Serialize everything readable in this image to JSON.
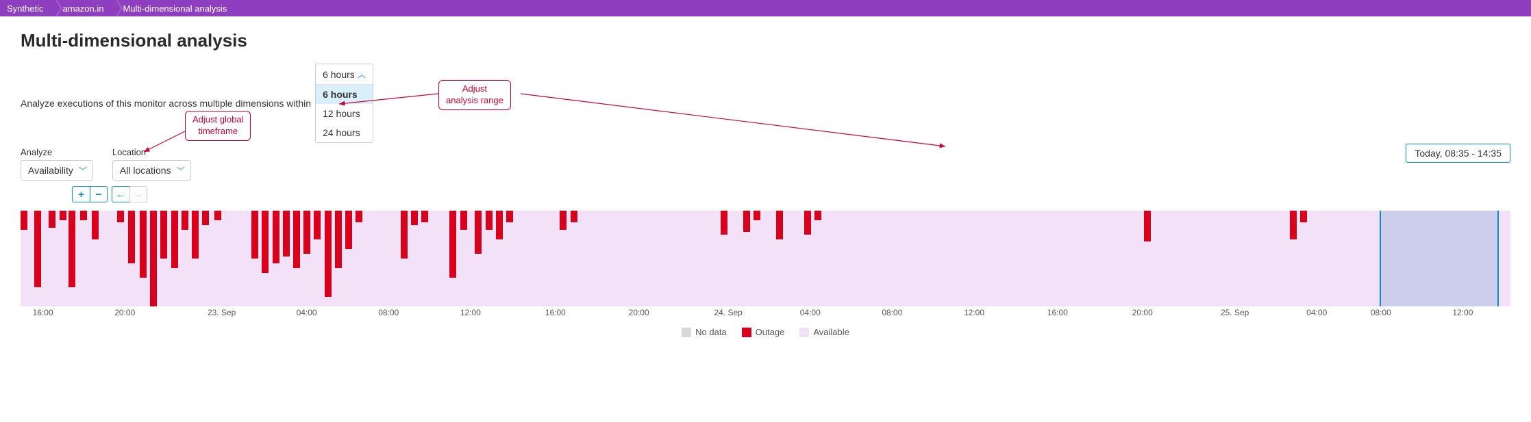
{
  "breadcrumb": [
    "Synthetic",
    "amazon.in",
    "Multi-dimensional analysis"
  ],
  "title": "Multi-dimensional analysis",
  "intro": "Analyze executions of this monitor across multiple dimensions within",
  "analyze": {
    "label": "Analyze",
    "value": "Availability"
  },
  "location": {
    "label": "Location",
    "value": "All locations"
  },
  "range_dropdown": {
    "selected": "6 hours",
    "options": [
      "6 hours",
      "12 hours",
      "24 hours"
    ]
  },
  "time_badge": "Today, 08:35 - 14:35",
  "annotations": {
    "global_timeframe": "Adjust global\ntimeframe",
    "analysis_range": "Adjust\nanalysis range"
  },
  "legend": [
    {
      "label": "No data",
      "color": "#d9d9d9"
    },
    {
      "label": "Outage",
      "color": "#d9001b"
    },
    {
      "label": "Available",
      "color": "#f3e1f7"
    }
  ],
  "colors": {
    "breadcrumb_bg": "#8e3fbf",
    "accent": "#0e8ec7",
    "annot": "#cc0033",
    "outage": "#d9001b",
    "available_bg": "#f3e1f7",
    "selection_fill": "rgba(135,169,214,0.35)"
  },
  "chart": {
    "selection": {
      "left_pct": 91.2,
      "width_pct": 8.0
    },
    "ticks": [
      {
        "pos_pct": 1.5,
        "label": "16:00"
      },
      {
        "pos_pct": 7.0,
        "label": "20:00"
      },
      {
        "pos_pct": 13.5,
        "label": "23. Sep"
      },
      {
        "pos_pct": 19.2,
        "label": "04:00"
      },
      {
        "pos_pct": 24.7,
        "label": "08:00"
      },
      {
        "pos_pct": 30.2,
        "label": "12:00"
      },
      {
        "pos_pct": 35.9,
        "label": "16:00"
      },
      {
        "pos_pct": 41.5,
        "label": "20:00"
      },
      {
        "pos_pct": 47.5,
        "label": "24. Sep"
      },
      {
        "pos_pct": 53.0,
        "label": "04:00"
      },
      {
        "pos_pct": 58.5,
        "label": "08:00"
      },
      {
        "pos_pct": 64.0,
        "label": "12:00"
      },
      {
        "pos_pct": 69.6,
        "label": "16:00"
      },
      {
        "pos_pct": 75.3,
        "label": "20:00"
      },
      {
        "pos_pct": 81.5,
        "label": "25. Sep"
      },
      {
        "pos_pct": 87.0,
        "label": "04:00"
      },
      {
        "pos_pct": 91.3,
        "label": "08:00"
      },
      {
        "pos_pct": 96.8,
        "label": "12:00"
      }
    ],
    "outages": [
      {
        "left_pct": 0.0,
        "height_pct": 20
      },
      {
        "left_pct": 0.9,
        "height_pct": 80
      },
      {
        "left_pct": 1.9,
        "height_pct": 18
      },
      {
        "left_pct": 2.6,
        "height_pct": 10
      },
      {
        "left_pct": 3.2,
        "height_pct": 80
      },
      {
        "left_pct": 4.0,
        "height_pct": 10
      },
      {
        "left_pct": 4.8,
        "height_pct": 30
      },
      {
        "left_pct": 6.5,
        "height_pct": 12
      },
      {
        "left_pct": 7.2,
        "height_pct": 55
      },
      {
        "left_pct": 8.0,
        "height_pct": 70
      },
      {
        "left_pct": 8.7,
        "height_pct": 100
      },
      {
        "left_pct": 9.4,
        "height_pct": 50
      },
      {
        "left_pct": 10.1,
        "height_pct": 60
      },
      {
        "left_pct": 10.8,
        "height_pct": 20
      },
      {
        "left_pct": 11.5,
        "height_pct": 50
      },
      {
        "left_pct": 12.2,
        "height_pct": 15
      },
      {
        "left_pct": 13.0,
        "height_pct": 10
      },
      {
        "left_pct": 15.5,
        "height_pct": 50
      },
      {
        "left_pct": 16.2,
        "height_pct": 65
      },
      {
        "left_pct": 16.9,
        "height_pct": 55
      },
      {
        "left_pct": 17.6,
        "height_pct": 48
      },
      {
        "left_pct": 18.3,
        "height_pct": 60
      },
      {
        "left_pct": 19.0,
        "height_pct": 45
      },
      {
        "left_pct": 19.7,
        "height_pct": 30
      },
      {
        "left_pct": 20.4,
        "height_pct": 90
      },
      {
        "left_pct": 21.1,
        "height_pct": 60
      },
      {
        "left_pct": 21.8,
        "height_pct": 40
      },
      {
        "left_pct": 22.5,
        "height_pct": 12
      },
      {
        "left_pct": 25.5,
        "height_pct": 50
      },
      {
        "left_pct": 26.2,
        "height_pct": 15
      },
      {
        "left_pct": 26.9,
        "height_pct": 12
      },
      {
        "left_pct": 28.8,
        "height_pct": 70
      },
      {
        "left_pct": 29.5,
        "height_pct": 20
      },
      {
        "left_pct": 30.5,
        "height_pct": 45
      },
      {
        "left_pct": 31.2,
        "height_pct": 20
      },
      {
        "left_pct": 31.9,
        "height_pct": 30
      },
      {
        "left_pct": 32.6,
        "height_pct": 12
      },
      {
        "left_pct": 36.2,
        "height_pct": 20
      },
      {
        "left_pct": 36.9,
        "height_pct": 12
      },
      {
        "left_pct": 47.0,
        "height_pct": 25
      },
      {
        "left_pct": 48.5,
        "height_pct": 22
      },
      {
        "left_pct": 49.2,
        "height_pct": 10
      },
      {
        "left_pct": 50.7,
        "height_pct": 30
      },
      {
        "left_pct": 52.6,
        "height_pct": 25
      },
      {
        "left_pct": 53.3,
        "height_pct": 10
      },
      {
        "left_pct": 75.4,
        "height_pct": 32
      },
      {
        "left_pct": 85.2,
        "height_pct": 30
      },
      {
        "left_pct": 85.9,
        "height_pct": 12
      }
    ]
  }
}
